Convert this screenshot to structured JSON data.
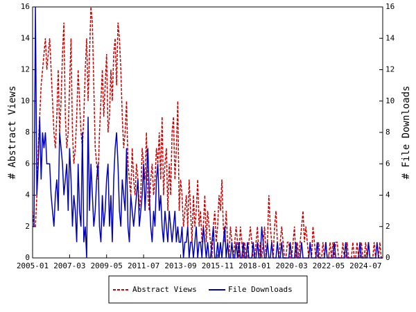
{
  "chart_data": {
    "type": "line",
    "x": [
      "2005-01",
      "2005-02",
      "2005-03",
      "2005-04",
      "2005-05",
      "2005-06",
      "2005-07",
      "2005-08",
      "2005-09",
      "2005-10",
      "2005-11",
      "2005-12",
      "2006-01",
      "2006-02",
      "2006-03",
      "2006-04",
      "2006-05",
      "2006-06",
      "2006-07",
      "2006-08",
      "2006-09",
      "2006-10",
      "2006-11",
      "2006-12",
      "2007-01",
      "2007-02",
      "2007-03",
      "2007-04",
      "2007-05",
      "2007-06",
      "2007-07",
      "2007-08",
      "2007-09",
      "2007-10",
      "2007-11",
      "2007-12",
      "2008-01",
      "2008-02",
      "2008-03",
      "2008-04",
      "2008-05",
      "2008-06",
      "2008-07",
      "2008-08",
      "2008-09",
      "2008-10",
      "2008-11",
      "2008-12",
      "2009-01",
      "2009-02",
      "2009-03",
      "2009-04",
      "2009-05",
      "2009-06",
      "2009-07",
      "2009-08",
      "2009-09",
      "2009-10",
      "2009-11",
      "2009-12",
      "2010-01",
      "2010-02",
      "2010-03",
      "2010-04",
      "2010-05",
      "2010-06",
      "2010-07",
      "2010-08",
      "2010-09",
      "2010-10",
      "2010-11",
      "2010-12",
      "2011-01",
      "2011-02",
      "2011-03",
      "2011-04",
      "2011-05",
      "2011-06",
      "2011-07",
      "2011-08",
      "2011-09",
      "2011-10",
      "2011-11",
      "2011-12",
      "2012-01",
      "2012-02",
      "2012-03",
      "2012-04",
      "2012-05",
      "2012-06",
      "2012-07",
      "2012-08",
      "2012-09",
      "2012-10",
      "2012-11",
      "2012-12",
      "2013-01",
      "2013-02",
      "2013-03",
      "2013-04",
      "2013-05",
      "2013-06",
      "2013-07",
      "2013-08",
      "2013-09",
      "2013-10",
      "2013-11",
      "2013-12",
      "2014-01",
      "2014-02",
      "2014-03",
      "2014-04",
      "2014-05",
      "2014-06",
      "2014-07",
      "2014-08",
      "2014-09",
      "2014-10",
      "2014-11",
      "2014-12",
      "2015-01",
      "2015-02",
      "2015-03",
      "2015-04",
      "2015-05",
      "2015-06",
      "2015-07",
      "2015-08",
      "2015-09",
      "2015-10",
      "2015-11",
      "2015-12",
      "2016-01",
      "2016-02",
      "2016-03",
      "2016-04",
      "2016-05",
      "2016-06",
      "2016-07",
      "2016-08",
      "2016-09",
      "2016-10",
      "2016-11",
      "2016-12",
      "2017-01",
      "2017-02",
      "2017-03",
      "2017-04",
      "2017-05",
      "2017-06",
      "2017-07",
      "2017-08",
      "2017-09",
      "2017-10",
      "2017-11",
      "2017-12",
      "2018-01",
      "2018-02",
      "2018-03",
      "2018-04",
      "2018-05",
      "2018-06",
      "2018-07",
      "2018-08",
      "2018-09",
      "2018-10",
      "2018-11",
      "2018-12",
      "2019-01",
      "2019-02",
      "2019-03",
      "2019-04",
      "2019-05",
      "2019-06",
      "2019-07",
      "2019-08",
      "2019-09",
      "2019-10",
      "2019-11",
      "2019-12",
      "2020-01",
      "2020-02",
      "2020-03",
      "2020-04",
      "2020-05",
      "2020-06",
      "2020-07",
      "2020-08",
      "2020-09",
      "2020-10",
      "2020-11",
      "2020-12",
      "2021-01",
      "2021-02",
      "2021-03",
      "2021-04",
      "2021-05",
      "2021-06",
      "2021-07",
      "2021-08",
      "2021-09",
      "2021-10",
      "2021-11",
      "2021-12",
      "2022-01",
      "2022-02",
      "2022-03",
      "2022-04",
      "2022-05",
      "2022-06",
      "2022-07",
      "2022-08",
      "2022-09",
      "2022-10",
      "2022-11",
      "2022-12",
      "2023-01",
      "2023-02",
      "2023-03",
      "2023-04",
      "2023-05",
      "2023-06",
      "2023-07",
      "2023-08",
      "2023-09",
      "2023-10",
      "2023-11",
      "2023-12",
      "2024-01",
      "2024-02",
      "2024-03",
      "2024-04",
      "2024-05",
      "2024-06",
      "2024-07",
      "2024-08",
      "2024-09",
      "2024-10",
      "2024-11",
      "2024-12",
      "2025-01",
      "2025-02",
      "2025-03",
      "2025-04",
      "2025-05",
      "2025-06",
      "2025-07"
    ],
    "series": [
      {
        "name": "Abstract Views",
        "color": "#cc0000",
        "dash": true,
        "values": [
          3,
          2,
          2,
          4,
          7,
          9,
          11,
          12,
          13,
          14,
          12,
          13,
          14,
          12,
          10,
          8,
          7,
          9,
          12,
          8,
          10,
          13,
          15,
          9,
          7,
          8,
          11,
          14,
          8,
          6,
          7,
          9,
          12,
          10,
          8,
          7,
          9,
          12,
          14,
          10,
          13,
          16,
          15,
          11,
          7,
          6,
          5,
          8,
          10,
          12,
          9,
          11,
          13,
          8,
          9,
          12,
          10,
          13,
          14,
          11,
          15,
          14,
          12,
          9,
          7,
          8,
          10,
          6,
          5,
          4,
          7,
          5,
          4,
          6,
          5,
          3,
          4,
          7,
          6,
          5,
          8,
          4,
          3,
          5,
          6,
          4,
          5,
          7,
          6,
          8,
          5,
          9,
          4,
          6,
          7,
          3,
          6,
          4,
          8,
          9,
          5,
          7,
          10,
          3,
          5,
          4,
          2,
          3,
          4,
          2,
          5,
          3,
          1,
          4,
          2,
          3,
          5,
          2,
          3,
          1,
          2,
          4,
          1,
          3,
          2,
          1,
          0,
          2,
          3,
          1,
          2,
          4,
          3,
          5,
          2,
          1,
          3,
          1,
          0,
          2,
          1,
          0,
          1,
          2,
          1,
          0,
          2,
          1,
          0,
          1,
          0,
          0,
          1,
          2,
          1,
          0,
          0,
          1,
          2,
          0,
          1,
          0,
          1,
          2,
          0,
          1,
          4,
          2,
          1,
          0,
          2,
          3,
          1,
          0,
          1,
          2,
          1,
          0,
          0,
          1,
          1,
          0,
          0,
          1,
          2,
          0,
          1,
          0,
          1,
          2,
          3,
          1,
          2,
          1,
          0,
          1,
          0,
          2,
          1,
          0,
          0,
          1,
          0,
          0,
          1,
          0,
          1,
          0,
          0,
          1,
          0,
          1,
          0,
          1,
          1,
          0,
          0,
          0,
          1,
          0,
          0,
          1,
          0,
          0,
          0,
          1,
          0,
          0,
          1,
          0,
          0,
          1,
          0,
          0,
          1,
          0,
          1,
          0,
          0,
          0,
          1,
          0,
          0,
          0,
          1,
          0,
          0
        ]
      },
      {
        "name": "File Downloads",
        "color": "#0000bb",
        "dash": false,
        "axis": "y2",
        "values": [
          2,
          2,
          16,
          4,
          6,
          9,
          5,
          8,
          7,
          8,
          6,
          6,
          6,
          4,
          3,
          2,
          4,
          5,
          3,
          8,
          7,
          6,
          4,
          5,
          6,
          3,
          7,
          5,
          2,
          4,
          3,
          1,
          6,
          3,
          2,
          8,
          1,
          2,
          0,
          9,
          3,
          6,
          4,
          2,
          3,
          5,
          6,
          2,
          1,
          4,
          2,
          3,
          5,
          6,
          2,
          4,
          1,
          5,
          7,
          8,
          6,
          3,
          2,
          5,
          4,
          3,
          7,
          2,
          1,
          4,
          3,
          2,
          3,
          4,
          5,
          2,
          3,
          4,
          6,
          3,
          5,
          7,
          4,
          2,
          1,
          3,
          2,
          5,
          6,
          3,
          4,
          2,
          1,
          3,
          2,
          1,
          3,
          2,
          1,
          2,
          3,
          1,
          2,
          1,
          1,
          2,
          0,
          1,
          1,
          2,
          0,
          1,
          1,
          0,
          1,
          2,
          0,
          1,
          1,
          0,
          2,
          1,
          0,
          1,
          0,
          0,
          1,
          2,
          0,
          0,
          1,
          0,
          1,
          0,
          1,
          2,
          0,
          1,
          0,
          0,
          1,
          0,
          0,
          1,
          0,
          1,
          0,
          0,
          1,
          0,
          0,
          1,
          0,
          0,
          0,
          1,
          0,
          0,
          1,
          0,
          0,
          2,
          1,
          0,
          0,
          1,
          0,
          0,
          1,
          0,
          0,
          0,
          1,
          0,
          0,
          1,
          0,
          0,
          0,
          0,
          0,
          1,
          0,
          0,
          0,
          1,
          0,
          0,
          0,
          1,
          0,
          0,
          0,
          0,
          0,
          1,
          0,
          0,
          0,
          0,
          1,
          0,
          0,
          0,
          0,
          0,
          1,
          0,
          0,
          0,
          0,
          0,
          1,
          0,
          0,
          0,
          0,
          0,
          0,
          0,
          1,
          0,
          0,
          0,
          0,
          0,
          0,
          0,
          0,
          0,
          1,
          0,
          0,
          0,
          0,
          0,
          1,
          0,
          0,
          0,
          0,
          0,
          1,
          0,
          0,
          0,
          0
        ]
      }
    ],
    "xlim": [
      "2005-01",
      "2025-07"
    ],
    "xticks": [
      "2005-01",
      "2007-03",
      "2009-05",
      "2011-07",
      "2013-09",
      "2015-11",
      "2018-01",
      "2020-03",
      "2022-05",
      "2024-07"
    ],
    "ylim": [
      0,
      16
    ],
    "yticks": [
      0,
      2,
      4,
      6,
      8,
      10,
      12,
      14,
      16
    ],
    "y2lim": [
      0,
      16
    ],
    "y2ticks": [
      0,
      2,
      4,
      6,
      8,
      10,
      12,
      14,
      16
    ],
    "ylabel": "# Abstract Views",
    "y2label": "# File Downloads",
    "legend": "bottom"
  }
}
